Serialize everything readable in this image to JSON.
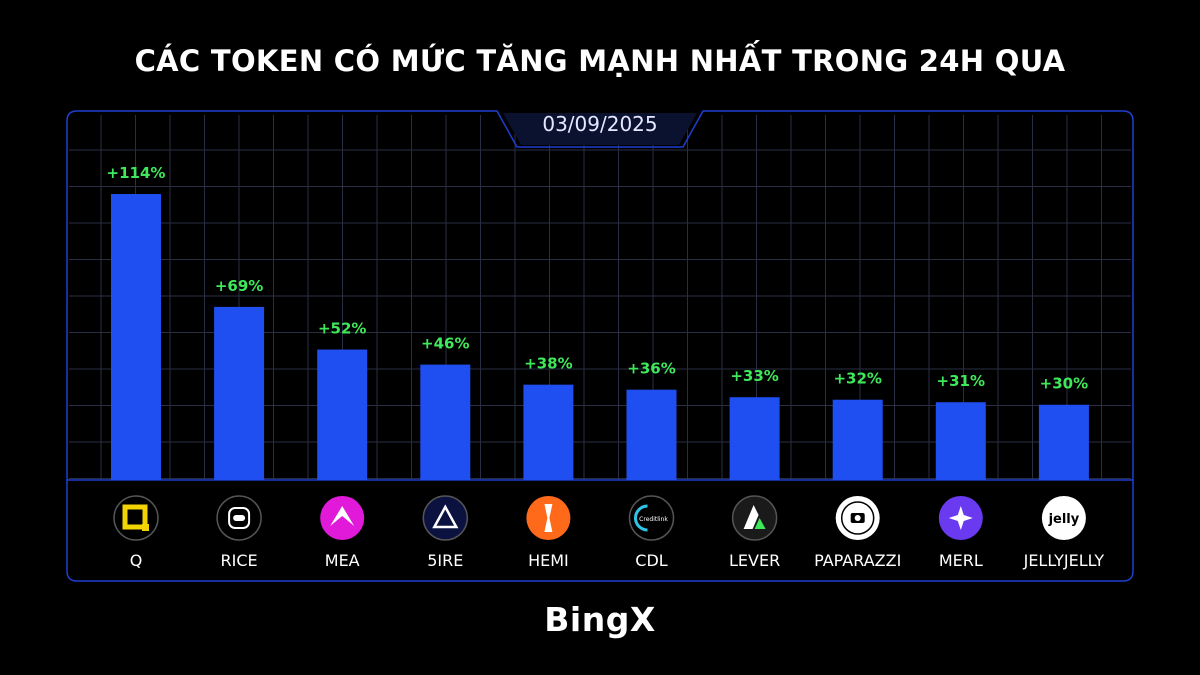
{
  "title": "CÁC TOKEN CÓ MỨC TĂNG MẠNH NHẤT TRONG 24H QUA",
  "date": "03/09/2025",
  "brand": "BingX",
  "colors": {
    "background": "#000000",
    "bar": "#1f4ff0",
    "value_label": "#3ee85a",
    "grid": "#2a2e44",
    "frame": "#1f3fd0"
  },
  "chart_data": {
    "type": "bar",
    "categories": [
      "Q",
      "RICE",
      "MEA",
      "5IRE",
      "HEMI",
      "CDL",
      "LEVER",
      "PAPARAZZI",
      "MERL",
      "JELLYJELLY"
    ],
    "values": [
      114,
      69,
      52,
      46,
      38,
      36,
      33,
      32,
      31,
      30
    ],
    "value_labels": [
      "+114%",
      "+69%",
      "+52%",
      "+46%",
      "+38%",
      "+36%",
      "+33%",
      "+32%",
      "+31%",
      "+30%"
    ],
    "unit": "%",
    "grid": true,
    "legend": "none"
  },
  "tokens": [
    {
      "name": "Q",
      "icon": "q-token-icon"
    },
    {
      "name": "RICE",
      "icon": "rice-token-icon"
    },
    {
      "name": "MEA",
      "icon": "mea-token-icon"
    },
    {
      "name": "5IRE",
      "icon": "5ire-token-icon"
    },
    {
      "name": "HEMI",
      "icon": "hemi-token-icon"
    },
    {
      "name": "CDL",
      "icon": "cdl-token-icon",
      "icon_text": "Creditlink"
    },
    {
      "name": "LEVER",
      "icon": "lever-token-icon"
    },
    {
      "name": "PAPARAZZI",
      "icon": "paparazzi-token-icon"
    },
    {
      "name": "MERL",
      "icon": "merl-token-icon"
    },
    {
      "name": "JELLYJELLY",
      "icon": "jellyjelly-token-icon",
      "icon_text": "jelly"
    }
  ]
}
